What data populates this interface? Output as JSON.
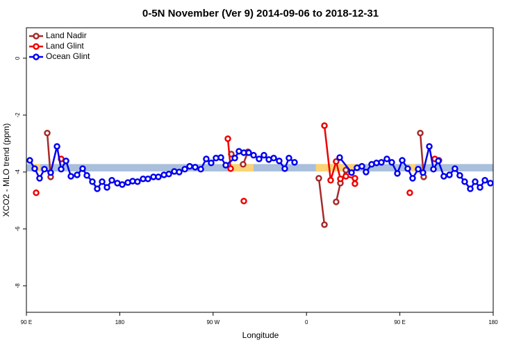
{
  "chart_data": {
    "type": "line",
    "title": "0-5N November (Ver 9)   2014-09-06 to 2018-12-31",
    "x_label": "Longitude",
    "y_label": "XCO2 - MLO trend (ppm)",
    "xlim": [
      90,
      540
    ],
    "xticks": [
      {
        "value": 90,
        "label": "90 E"
      },
      180,
      {
        "value": 270,
        "label": "90 W"
      },
      {
        "value": 360,
        "label": "0"
      },
      {
        "value": 450,
        "label": "90 E"
      },
      {
        "value": 540,
        "label": "180"
      }
    ],
    "ylim": [
      -8.93,
      1.07
    ],
    "yticks": [
      0,
      -2,
      -4,
      -6,
      -8
    ],
    "legend": "top-left",
    "bands": [
      {
        "color": "#a9bfdc",
        "x": [
          90,
          540
        ],
        "y": [
          -3.72,
          -3.98
        ]
      },
      {
        "color": "#fbd275",
        "x": [
          96.7,
          103.4
        ],
        "y": [
          -3.72,
          -3.98
        ]
      },
      {
        "color": "#fbd275",
        "x": [
          285.5,
          309
        ],
        "y": [
          -3.72,
          -3.98
        ]
      },
      {
        "color": "#fbd275",
        "x": [
          369,
          409
        ],
        "y": [
          -3.72,
          -3.98
        ]
      },
      {
        "color": "#fbd275",
        "x": [
          459.6,
          465
        ],
        "y": [
          -3.72,
          -3.98
        ]
      }
    ],
    "series": [
      {
        "name": "Land Nadir",
        "color": "#a52a2a",
        "x": [
          110.1,
          113.4,
          null,
          287.5,
          null,
          298.9,
          303.6,
          null,
          371.9,
          377.3,
          null,
          388.6,
          392.7,
          398.0,
          null,
          469.7,
          473.0,
          null,
          487.7
        ],
        "values": [
          -2.63,
          -4.17,
          null,
          -3.37,
          null,
          -3.73,
          -3.29,
          null,
          -4.22,
          -5.85,
          null,
          -5.05,
          -4.39,
          -3.93,
          null,
          -2.63,
          -4.17,
          null,
          -3.59
        ]
      },
      {
        "name": "Land Glint",
        "color": "#ee0000",
        "x": [
          99.4,
          null,
          123.5,
          null,
          284.2,
          286.9,
          null,
          299.6,
          null,
          377.3,
          383.3,
          388.6,
          392.7,
          398.0,
          406.7,
          406.7,
          null,
          459.6,
          null,
          483.7
        ],
        "values": [
          -4.73,
          null,
          -3.54,
          null,
          -2.83,
          -3.88,
          null,
          -5.02,
          null,
          -2.37,
          -4.29,
          -3.63,
          -4.24,
          -4.15,
          -4.22,
          -4.41,
          null,
          -4.73,
          null,
          -3.54
        ]
      },
      {
        "name": "Ocean Glint",
        "color": "#0000ee",
        "x": [
          93.3,
          98.0,
          102.7,
          107.4,
          113.4,
          119.5,
          123.5,
          128.2,
          132.9,
          138.9,
          144.2,
          148.3,
          153.6,
          158.3,
          163.0,
          167.7,
          172.4,
          177.7,
          182.4,
          187.8,
          192.4,
          197.1,
          202.5,
          207.2,
          212.5,
          217.2,
          222.6,
          227.3,
          232.6,
          237.3,
          242.7,
          247.4,
          252.7,
          258.1,
          263.4,
          268.1,
          272.8,
          277.5,
          282.2,
          290.9,
          294.9,
          299.6,
          304.3,
          309.0,
          314.3,
          319.0,
          323.7,
          328.4,
          333.7,
          339.1,
          343.1,
          348.5,
          null,
          392.0,
          403.4,
          408.7,
          413.4,
          417.4,
          422.8,
          427.5,
          432.2,
          437.5,
          442.2,
          447.6,
          452.3,
          457.6,
          462.3,
          467.7,
          472.3,
          478.4,
          482.4,
          487.1,
          492.4,
          497.8,
          503.1,
          507.8,
          512.5,
          517.9,
          522.6,
          527.3,
          532.0,
          537.3
        ],
        "values": [
          -3.59,
          -3.88,
          -4.22,
          -3.9,
          -4.02,
          -3.1,
          -3.9,
          -3.61,
          -4.15,
          -4.1,
          -3.88,
          -4.12,
          -4.34,
          -4.59,
          -4.34,
          -4.54,
          -4.29,
          -4.39,
          -4.44,
          -4.37,
          -4.32,
          -4.34,
          -4.24,
          -4.24,
          -4.17,
          -4.17,
          -4.1,
          -4.07,
          -3.98,
          -4.0,
          -3.9,
          -3.8,
          -3.83,
          -3.9,
          -3.54,
          -3.68,
          -3.51,
          -3.49,
          -3.76,
          -3.51,
          -3.27,
          -3.32,
          -3.32,
          -3.41,
          -3.54,
          -3.41,
          -3.56,
          -3.51,
          -3.61,
          -3.88,
          -3.51,
          -3.66,
          null,
          -3.49,
          -4.02,
          -3.85,
          -3.8,
          -4.0,
          -3.73,
          -3.68,
          -3.66,
          -3.54,
          -3.66,
          -4.05,
          -3.59,
          -3.88,
          -4.22,
          -3.9,
          -4.02,
          -3.1,
          -3.9,
          -3.61,
          -4.15,
          -4.1,
          -3.88,
          -4.12,
          -4.34,
          -4.59,
          -4.34,
          -4.54,
          -4.29,
          -4.39
        ]
      }
    ]
  }
}
